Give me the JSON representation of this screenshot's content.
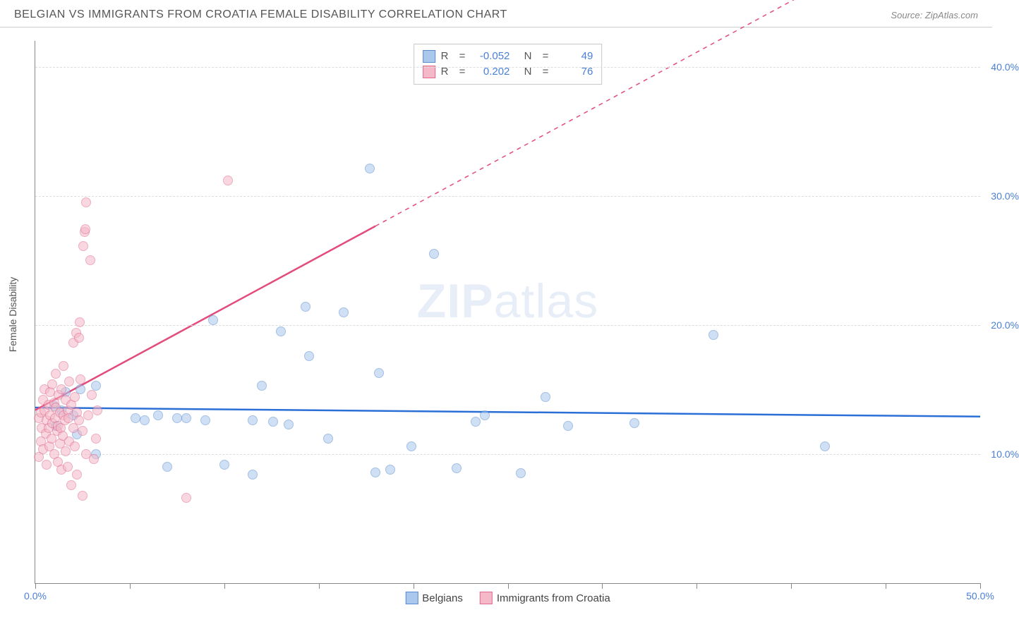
{
  "title": "BELGIAN VS IMMIGRANTS FROM CROATIA FEMALE DISABILITY CORRELATION CHART",
  "source_label": "Source:",
  "source_value": "ZipAtlas.com",
  "watermark": {
    "zip": "ZIP",
    "atlas": "atlas"
  },
  "yaxis_label": "Female Disability",
  "chart": {
    "type": "scatter",
    "xlim": [
      0,
      50
    ],
    "ylim": [
      0,
      42
    ],
    "xticks": [
      0,
      5,
      10,
      15,
      20,
      25,
      30,
      35,
      40,
      45,
      50
    ],
    "yticks": [
      10,
      20,
      30,
      40
    ],
    "xtick_labels": {
      "0": "0.0%",
      "50": "50.0%"
    },
    "ytick_labels": {
      "10": "10.0%",
      "20": "20.0%",
      "30": "30.0%",
      "40": "40.0%"
    },
    "grid_color": "#dddddd",
    "axis_color": "#888888",
    "background_color": "#ffffff",
    "point_radius": 7,
    "point_opacity": 0.55,
    "series": [
      {
        "name": "Belgians",
        "fill_color": "#a9c8ec",
        "stroke_color": "#5a8bd0",
        "r_value": "-0.052",
        "n_value": "49",
        "trend": {
          "x1": 0,
          "y1": 13.6,
          "x2": 50,
          "y2": 12.9,
          "solid_until_x": 50,
          "stroke": "#2a6fd6",
          "width": 2.5
        },
        "points": [
          [
            1.0,
            13.7
          ],
          [
            1.1,
            12.2
          ],
          [
            1.4,
            13.4
          ],
          [
            1.6,
            14.8
          ],
          [
            2.0,
            13.0
          ],
          [
            2.2,
            11.5
          ],
          [
            2.4,
            15.0
          ],
          [
            3.2,
            15.3
          ],
          [
            3.2,
            10.0
          ],
          [
            5.3,
            12.8
          ],
          [
            5.8,
            12.6
          ],
          [
            6.5,
            13.0
          ],
          [
            7.0,
            9.0
          ],
          [
            7.5,
            12.8
          ],
          [
            8.0,
            12.8
          ],
          [
            9.0,
            12.6
          ],
          [
            9.4,
            20.4
          ],
          [
            10.0,
            9.2
          ],
          [
            11.5,
            12.6
          ],
          [
            11.5,
            8.4
          ],
          [
            12.0,
            15.3
          ],
          [
            12.6,
            12.5
          ],
          [
            13.0,
            19.5
          ],
          [
            13.4,
            12.3
          ],
          [
            14.3,
            21.4
          ],
          [
            14.5,
            17.6
          ],
          [
            15.5,
            11.2
          ],
          [
            16.3,
            21.0
          ],
          [
            17.7,
            32.1
          ],
          [
            18.0,
            8.6
          ],
          [
            18.2,
            16.3
          ],
          [
            18.8,
            8.8
          ],
          [
            19.9,
            10.6
          ],
          [
            21.1,
            25.5
          ],
          [
            22.3,
            8.9
          ],
          [
            23.3,
            12.5
          ],
          [
            23.8,
            13.0
          ],
          [
            25.7,
            8.5
          ],
          [
            27.0,
            14.4
          ],
          [
            28.2,
            12.2
          ],
          [
            31.7,
            12.4
          ],
          [
            35.9,
            19.2
          ],
          [
            41.8,
            10.6
          ]
        ]
      },
      {
        "name": "Immigrants from Croatia",
        "fill_color": "#f4b8c8",
        "stroke_color": "#e06a8d",
        "r_value": "0.202",
        "n_value": "76",
        "trend": {
          "x1": 0,
          "y1": 13.4,
          "x2": 50,
          "y2": 53.0,
          "solid_until_x": 18,
          "stroke": "#e34b7b",
          "width": 2.5
        },
        "points": [
          [
            0.2,
            12.8
          ],
          [
            0.2,
            9.8
          ],
          [
            0.3,
            11.0
          ],
          [
            0.3,
            13.2
          ],
          [
            0.35,
            12.0
          ],
          [
            0.4,
            14.2
          ],
          [
            0.4,
            10.4
          ],
          [
            0.5,
            13.4
          ],
          [
            0.5,
            15.0
          ],
          [
            0.55,
            11.6
          ],
          [
            0.6,
            12.6
          ],
          [
            0.6,
            9.2
          ],
          [
            0.7,
            13.8
          ],
          [
            0.7,
            12.0
          ],
          [
            0.75,
            10.6
          ],
          [
            0.8,
            14.8
          ],
          [
            0.8,
            13.0
          ],
          [
            0.85,
            11.2
          ],
          [
            0.9,
            12.4
          ],
          [
            0.9,
            15.4
          ],
          [
            1.0,
            14.0
          ],
          [
            1.0,
            10.0
          ],
          [
            1.05,
            12.8
          ],
          [
            1.1,
            13.6
          ],
          [
            1.1,
            16.2
          ],
          [
            1.15,
            11.8
          ],
          [
            1.2,
            9.4
          ],
          [
            1.2,
            12.2
          ],
          [
            1.25,
            14.6
          ],
          [
            1.3,
            10.8
          ],
          [
            1.3,
            13.2
          ],
          [
            1.35,
            12.0
          ],
          [
            1.4,
            15.0
          ],
          [
            1.4,
            8.8
          ],
          [
            1.45,
            11.4
          ],
          [
            1.5,
            13.0
          ],
          [
            1.5,
            16.8
          ],
          [
            1.55,
            12.6
          ],
          [
            1.6,
            10.2
          ],
          [
            1.6,
            14.2
          ],
          [
            1.7,
            9.0
          ],
          [
            1.7,
            13.4
          ],
          [
            1.75,
            12.8
          ],
          [
            1.8,
            11.0
          ],
          [
            1.8,
            15.6
          ],
          [
            1.9,
            13.8
          ],
          [
            1.9,
            7.6
          ],
          [
            2.0,
            12.0
          ],
          [
            2.0,
            18.6
          ],
          [
            2.1,
            14.4
          ],
          [
            2.1,
            10.6
          ],
          [
            2.15,
            19.4
          ],
          [
            2.2,
            13.2
          ],
          [
            2.2,
            8.4
          ],
          [
            2.3,
            12.6
          ],
          [
            2.3,
            19.0
          ],
          [
            2.35,
            20.2
          ],
          [
            2.4,
            15.8
          ],
          [
            2.5,
            11.8
          ],
          [
            2.5,
            6.8
          ],
          [
            2.55,
            26.1
          ],
          [
            2.6,
            27.2
          ],
          [
            2.65,
            27.4
          ],
          [
            2.7,
            29.5
          ],
          [
            2.7,
            10.0
          ],
          [
            2.8,
            13.0
          ],
          [
            2.9,
            25.0
          ],
          [
            3.0,
            14.6
          ],
          [
            3.1,
            9.6
          ],
          [
            3.2,
            11.2
          ],
          [
            3.3,
            13.4
          ],
          [
            8.0,
            6.6
          ],
          [
            10.2,
            31.2
          ]
        ]
      }
    ],
    "legend_top": {
      "col1_label": "R",
      "col2_label": "N",
      "eq": "="
    },
    "legend_bottom": {
      "items": [
        "Belgians",
        "Immigrants from Croatia"
      ]
    },
    "tick_label_color": "#4a7fd8"
  }
}
